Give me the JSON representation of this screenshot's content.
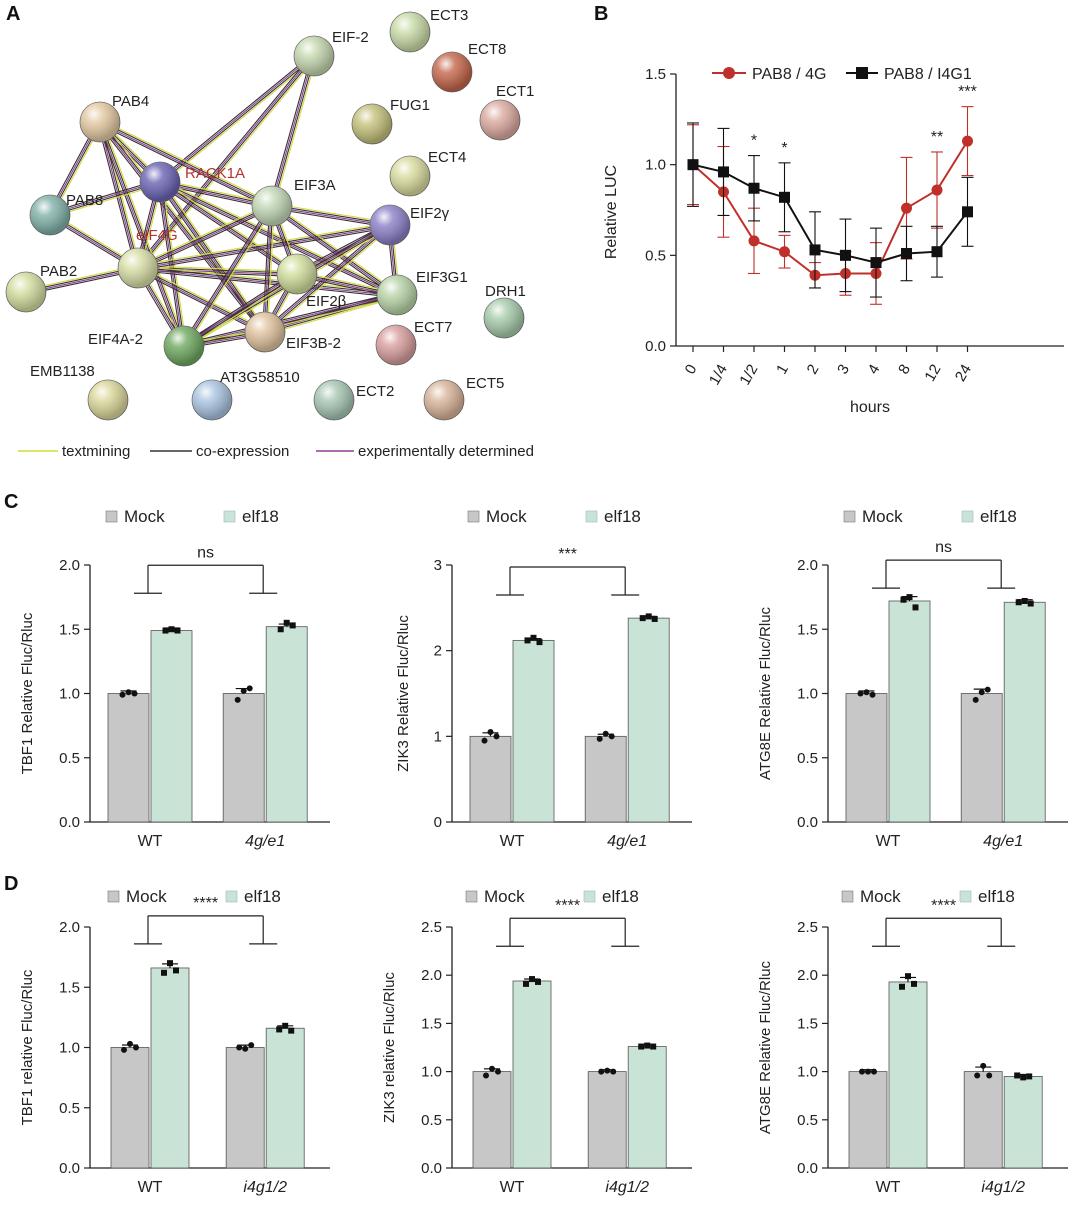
{
  "panel_letters": {
    "a": "A",
    "b": "B",
    "c": "C",
    "d": "D"
  },
  "network": {
    "nodes": [
      {
        "id": "ECT3",
        "label": "ECT3",
        "color": "#c9dba6"
      },
      {
        "id": "ECT8",
        "label": "ECT8",
        "color": "#c4664a"
      },
      {
        "id": "ECT1",
        "label": "ECT1",
        "color": "#dcaaa0"
      },
      {
        "id": "EIF2",
        "label": "EIF-2",
        "color": "#c4d7ae"
      },
      {
        "id": "FUG1",
        "label": "FUG1",
        "color": "#c4c07a"
      },
      {
        "id": "ECT4",
        "label": "ECT4",
        "color": "#dadb9e"
      },
      {
        "id": "PAB4",
        "label": "PAB4",
        "color": "#e3c8a1"
      },
      {
        "id": "RACK1A",
        "label": "RACK1A",
        "color": "#6a63b5",
        "label_color": "#b3322f"
      },
      {
        "id": "EIF3A",
        "label": "EIF3A",
        "color": "#c2d7b6"
      },
      {
        "id": "PAB8",
        "label": "PAB8",
        "color": "#7fb1a8"
      },
      {
        "id": "eIF4G",
        "label": "eIF4G",
        "color": "#d7dea5",
        "label_color": "#b3322f"
      },
      {
        "id": "EIF2g",
        "label": "EIF2γ",
        "color": "#8b80c7"
      },
      {
        "id": "PAB2",
        "label": "PAB2",
        "color": "#d4dd9f"
      },
      {
        "id": "EIF2b",
        "label": "EIF2β",
        "color": "#d0dd9c"
      },
      {
        "id": "EIF3G1",
        "label": "EIF3G1",
        "color": "#b8d4a6"
      },
      {
        "id": "DRH1",
        "label": "DRH1",
        "color": "#a6ccaa"
      },
      {
        "id": "EIF4A2",
        "label": "EIF4A-2",
        "color": "#6fa860"
      },
      {
        "id": "EIF3B2",
        "label": "EIF3B-2",
        "color": "#e0c29e"
      },
      {
        "id": "ECT7",
        "label": "ECT7",
        "color": "#d99e9e"
      },
      {
        "id": "EMB1138",
        "label": "EMB1138",
        "color": "#dbd79a"
      },
      {
        "id": "AT3G58510",
        "label": "AT3G58510",
        "color": "#a9c4e0"
      },
      {
        "id": "ECT2",
        "label": "ECT2",
        "color": "#a6c7b3"
      },
      {
        "id": "ECT5",
        "label": "ECT5",
        "color": "#d9b49a"
      }
    ],
    "edges": [
      [
        "EIF2",
        "RACK1A"
      ],
      [
        "EIF2",
        "EIF3A"
      ],
      [
        "EIF2",
        "eIF4G"
      ],
      [
        "PAB4",
        "PAB8"
      ],
      [
        "PAB4",
        "RACK1A"
      ],
      [
        "PAB4",
        "eIF4G"
      ],
      [
        "PAB4",
        "EIF3B2"
      ],
      [
        "PAB4",
        "EIF4A2"
      ],
      [
        "PAB4",
        "EIF3A"
      ],
      [
        "RACK1A",
        "eIF4G"
      ],
      [
        "RACK1A",
        "PAB8"
      ],
      [
        "RACK1A",
        "EIF3A"
      ],
      [
        "RACK1A",
        "EIF3B2"
      ],
      [
        "RACK1A",
        "EIF3G1"
      ],
      [
        "RACK1A",
        "EIF2b"
      ],
      [
        "RACK1A",
        "EIF4A2"
      ],
      [
        "PAB8",
        "eIF4G"
      ],
      [
        "PAB2",
        "eIF4G"
      ],
      [
        "eIF4G",
        "EIF3A"
      ],
      [
        "eIF4G",
        "EIF2b"
      ],
      [
        "eIF4G",
        "EIF3B2"
      ],
      [
        "eIF4G",
        "EIF4A2"
      ],
      [
        "eIF4G",
        "EIF3G1"
      ],
      [
        "eIF4G",
        "EIF2g"
      ],
      [
        "EIF3A",
        "EIF2g"
      ],
      [
        "EIF3A",
        "EIF2b"
      ],
      [
        "EIF3A",
        "EIF3G1"
      ],
      [
        "EIF3A",
        "EIF3B2"
      ],
      [
        "EIF3A",
        "EIF4A2"
      ],
      [
        "EIF2g",
        "EIF2b"
      ],
      [
        "EIF2g",
        "EIF3G1"
      ],
      [
        "EIF2g",
        "EIF3B2"
      ],
      [
        "EIF2g",
        "EIF4A2"
      ],
      [
        "EIF2b",
        "EIF3G1"
      ],
      [
        "EIF2b",
        "EIF3B2"
      ],
      [
        "EIF2b",
        "EIF4A2"
      ],
      [
        "EIF3G1",
        "EIF3B2"
      ],
      [
        "EIF3G1",
        "EIF4A2"
      ],
      [
        "EIF4A2",
        "EIF3B2"
      ]
    ],
    "legend": [
      "textmining",
      "co-expression",
      "experimentally determined"
    ],
    "legend_colors": [
      "#cfdc3a",
      "#333333",
      "#8e3f8f"
    ]
  },
  "colors": {
    "red": "#c0302b",
    "black": "#111111",
    "mock": "#c7c7c7",
    "elf18": "#c9e4d6"
  },
  "chart_data": [
    {
      "id": "B",
      "type": "line",
      "title": "",
      "xlabel": "hours",
      "ylabel": "Relative LUC",
      "categories": [
        "0",
        "1/4",
        "1/2",
        "1",
        "2",
        "3",
        "4",
        "8",
        "12",
        "24"
      ],
      "ylim": [
        0,
        1.5
      ],
      "yticks": [
        "0.0",
        "0.5",
        "1.0",
        "1.5"
      ],
      "series": [
        {
          "name": "PAB8 / 4G",
          "values": [
            1.0,
            0.85,
            0.58,
            0.52,
            0.39,
            0.4,
            0.4,
            0.76,
            0.86,
            1.13
          ],
          "err": [
            0.22,
            0.25,
            0.18,
            0.09,
            0.07,
            0.12,
            0.17,
            0.28,
            0.21,
            0.19
          ]
        },
        {
          "name": "PAB8 / I4G1",
          "values": [
            1.0,
            0.96,
            0.87,
            0.82,
            0.53,
            0.5,
            0.46,
            0.51,
            0.52,
            0.74
          ],
          "err": [
            0.23,
            0.24,
            0.18,
            0.19,
            0.21,
            0.2,
            0.19,
            0.15,
            0.14,
            0.19
          ]
        }
      ],
      "annotations": [
        {
          "at": "1/2",
          "text": "*"
        },
        {
          "at": "1",
          "text": "*"
        },
        {
          "at": "12",
          "text": "**"
        },
        {
          "at": "24",
          "text": "***"
        }
      ],
      "legend": "top"
    },
    {
      "id": "C1",
      "type": "bar",
      "ylabel": "TBF1 Relative Fluc/Rluc",
      "categories": [
        "WT",
        "4g/e1"
      ],
      "legend_labels": [
        "Mock",
        "elf18"
      ],
      "series": [
        {
          "name": "Mock",
          "values": [
            1.0,
            1.0
          ]
        },
        {
          "name": "elf18",
          "values": [
            1.49,
            1.52
          ]
        }
      ],
      "ylim": [
        0,
        2.0
      ],
      "yticks": [
        "0.0",
        "0.5",
        "1.0",
        "1.5",
        "2.0"
      ],
      "bracket_y": 1.78,
      "sig": "ns",
      "points": [
        [
          [
            0.99,
            1.01,
            1.0
          ]
        ],
        [
          [
            1.49,
            1.5,
            1.49
          ]
        ],
        [
          [
            0.95,
            1.02,
            1.04
          ]
        ],
        [
          [
            1.5,
            1.55,
            1.53
          ]
        ]
      ]
    },
    {
      "id": "C2",
      "type": "bar",
      "ylabel": "ZIK3 Relative Fluc/Rluc",
      "categories": [
        "WT",
        "4g/e1"
      ],
      "legend_labels": [
        "Mock",
        "elf18"
      ],
      "series": [
        {
          "name": "Mock",
          "values": [
            1.0,
            1.0
          ]
        },
        {
          "name": "elf18",
          "values": [
            2.12,
            2.38
          ]
        }
      ],
      "ylim": [
        0,
        3
      ],
      "yticks": [
        "0",
        "1",
        "2",
        "3"
      ],
      "bracket_y": 2.65,
      "sig": "***",
      "points": [
        [
          [
            0.95,
            1.05,
            1.0
          ]
        ],
        [
          [
            2.12,
            2.15,
            2.1
          ]
        ],
        [
          [
            0.97,
            1.03,
            1.0
          ]
        ],
        [
          [
            2.38,
            2.4,
            2.37
          ]
        ]
      ]
    },
    {
      "id": "C3",
      "type": "bar",
      "ylabel": "ATG8E Relative Fluc/Rluc",
      "categories": [
        "WT",
        "4g/e1"
      ],
      "legend_labels": [
        "Mock",
        "elf18"
      ],
      "series": [
        {
          "name": "Mock",
          "values": [
            1.0,
            1.0
          ]
        },
        {
          "name": "elf18",
          "values": [
            1.72,
            1.71
          ]
        }
      ],
      "ylim": [
        0,
        2.0
      ],
      "yticks": [
        "0.0",
        "0.5",
        "1.0",
        "1.5",
        "2.0"
      ],
      "bracket_y": 1.82,
      "sig": "ns",
      "points": [
        [
          [
            1.0,
            1.01,
            0.99
          ]
        ],
        [
          [
            1.73,
            1.75,
            1.67
          ]
        ],
        [
          [
            0.95,
            1.01,
            1.03
          ]
        ],
        [
          [
            1.71,
            1.72,
            1.7
          ]
        ]
      ]
    },
    {
      "id": "D1",
      "type": "bar",
      "ylabel": "TBF1 relative Fluc/Rluc",
      "categories": [
        "WT",
        "i4g1/2"
      ],
      "legend_labels": [
        "Mock",
        "elf18"
      ],
      "series": [
        {
          "name": "Mock",
          "values": [
            1.0,
            1.0
          ]
        },
        {
          "name": "elf18",
          "values": [
            1.66,
            1.16
          ]
        }
      ],
      "ylim": [
        0,
        2.0
      ],
      "yticks": [
        "0.0",
        "0.5",
        "1.0",
        "1.5",
        "2.0"
      ],
      "bracket_y": 1.86,
      "sig": "****",
      "points": [
        [
          [
            0.98,
            1.03,
            1.0
          ]
        ],
        [
          [
            1.62,
            1.7,
            1.64
          ]
        ],
        [
          [
            1.0,
            0.99,
            1.02
          ]
        ],
        [
          [
            1.15,
            1.18,
            1.14
          ]
        ]
      ]
    },
    {
      "id": "D2",
      "type": "bar",
      "ylabel": "ZIK3 relative Fluc/Rluc",
      "categories": [
        "WT",
        "i4g1/2"
      ],
      "legend_labels": [
        "Mock",
        "elf18"
      ],
      "series": [
        {
          "name": "Mock",
          "values": [
            1.0,
            1.0
          ]
        },
        {
          "name": "elf18",
          "values": [
            1.94,
            1.26
          ]
        }
      ],
      "ylim": [
        0,
        2.5
      ],
      "yticks": [
        "0.0",
        "0.5",
        "1.0",
        "1.5",
        "2.0",
        "2.5"
      ],
      "bracket_y": 2.3,
      "sig": "****",
      "points": [
        [
          [
            0.96,
            1.03,
            1.0
          ]
        ],
        [
          [
            1.91,
            1.96,
            1.93
          ]
        ],
        [
          [
            1.0,
            1.01,
            1.0
          ]
        ],
        [
          [
            1.26,
            1.27,
            1.26
          ]
        ]
      ]
    },
    {
      "id": "D3",
      "type": "bar",
      "ylabel": "ATG8E Relative Fluc/Rluc",
      "categories": [
        "WT",
        "i4g1/2"
      ],
      "legend_labels": [
        "Mock",
        "elf18"
      ],
      "series": [
        {
          "name": "Mock",
          "values": [
            1.0,
            1.0
          ]
        },
        {
          "name": "elf18",
          "values": [
            1.93,
            0.95
          ]
        }
      ],
      "ylim": [
        0,
        2.5
      ],
      "yticks": [
        "0.0",
        "0.5",
        "1.0",
        "1.5",
        "2.0",
        "2.5"
      ],
      "bracket_y": 2.3,
      "sig": "****",
      "points": [
        [
          [
            1.0,
            1.0,
            1.0
          ]
        ],
        [
          [
            1.88,
            1.99,
            1.91
          ]
        ],
        [
          [
            0.96,
            1.06,
            0.96
          ]
        ],
        [
          [
            0.96,
            0.94,
            0.95
          ]
        ]
      ]
    }
  ]
}
